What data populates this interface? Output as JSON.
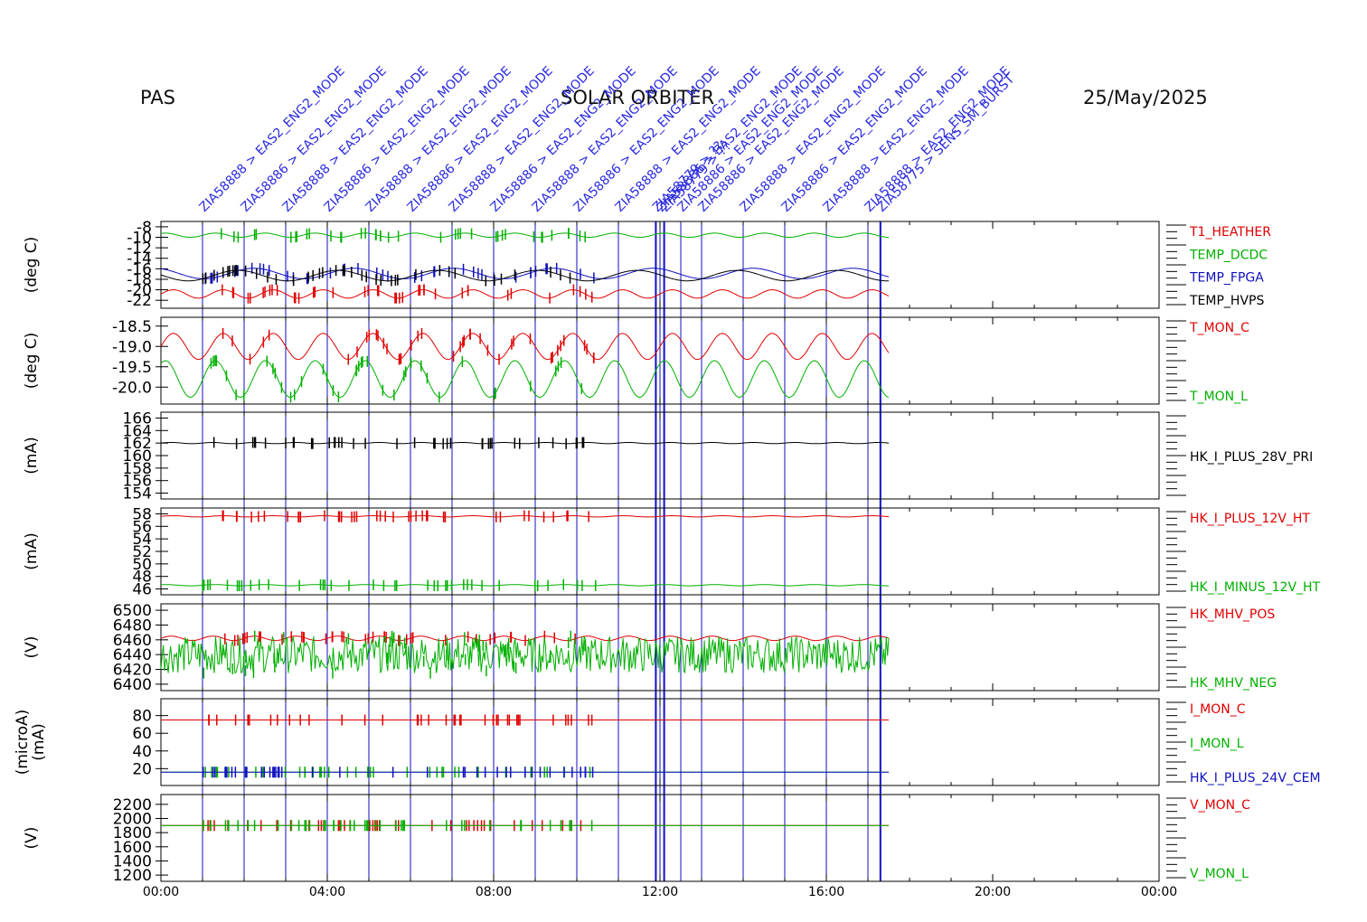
{
  "header": {
    "left": "PAS",
    "center": "SOLAR ORBITER",
    "date": "25/May/2025"
  },
  "colors": {
    "red": "#e00000",
    "green": "#00b000",
    "blue": "#1010c0",
    "black": "#000000",
    "event_text": "#2a2ae0"
  },
  "chart_data": [
    {
      "type": "line",
      "ylabel": "(deg C)",
      "yticks": [
        "-8",
        "-10",
        "-12",
        "-14",
        "-16",
        "-18",
        "-20",
        "-22"
      ],
      "ylim": [
        -23,
        -7.5
      ],
      "series": [
        {
          "name": "T1_HEATHER",
          "color": "red",
          "base": -20.8,
          "amp": 0.8,
          "period_h": 1.2
        },
        {
          "name": "TEMP_DCDC",
          "color": "green",
          "base": -9.6,
          "amp": 0.4,
          "period_h": 1.2
        },
        {
          "name": "TEMP_FPGA",
          "color": "blue",
          "base": -16.9,
          "amp": 1.0,
          "period_h": 2.4
        },
        {
          "name": "TEMP_HVPS",
          "color": "black",
          "base": -17.3,
          "amp": 1.0,
          "period_h": 2.4
        }
      ]
    },
    {
      "type": "line",
      "ylabel": "(deg C)",
      "yticks": [
        "-18.5",
        "-19.0",
        "-19.5",
        "-20.0"
      ],
      "ylim": [
        -20.35,
        -18.35
      ],
      "series": [
        {
          "name": "T_MON_C",
          "color": "red",
          "base": -19.0,
          "amp": 0.32,
          "period_h": 1.2
        },
        {
          "name": "T_MON_L",
          "color": "green",
          "base": -19.8,
          "amp": 0.45,
          "period_h": 1.2
        }
      ]
    },
    {
      "type": "line",
      "ylabel": "(mA)",
      "yticks": [
        "166",
        "164",
        "162",
        "160",
        "158",
        "156",
        "154"
      ],
      "ylim": [
        153.5,
        166.5
      ],
      "series": [
        {
          "name": "HK_I_PLUS_28V_PRI",
          "color": "black",
          "base": 162.0,
          "amp": 0.1,
          "period_h": 1.0
        }
      ]
    },
    {
      "type": "line",
      "ylabel": "(mA)",
      "yticks": [
        "58",
        "56",
        "54",
        "52",
        "50",
        "48",
        "46"
      ],
      "ylim": [
        45.5,
        58.5
      ],
      "series": [
        {
          "name": "HK_I_PLUS_12V_HT",
          "color": "red",
          "base": 57.6,
          "amp": 0.1,
          "period_h": 1.2
        },
        {
          "name": "HK_I_MINUS_12V_HT",
          "color": "green",
          "base": 46.6,
          "amp": 0.1,
          "period_h": 1.2
        }
      ]
    },
    {
      "type": "line",
      "ylabel": "(V)",
      "yticks": [
        "6500",
        "6480",
        "6460",
        "6440",
        "6420",
        "6400"
      ],
      "ylim": [
        6395,
        6505
      ],
      "series": [
        {
          "name": "HK_MHV_POS",
          "color": "red",
          "base": 6462,
          "amp": 3,
          "period_h": 1.0
        },
        {
          "name": "HK_MHV_NEG",
          "color": "green",
          "base": 6440,
          "amp": 25,
          "period_h": 0.05
        }
      ]
    },
    {
      "type": "line",
      "ylabel": "(microA)",
      "ylabel2": "(mA)",
      "yticks": [
        "80",
        "60",
        "40",
        "20"
      ],
      "ylim": [
        4,
        96
      ],
      "series": [
        {
          "name": "I_MON_C",
          "color": "red",
          "base": 75,
          "amp": 0,
          "period_h": 1.0
        },
        {
          "name": "I_MON_L",
          "color": "green",
          "base": 16,
          "amp": 0,
          "period_h": 1.0
        },
        {
          "name": "HK_I_PLUS_24V_CEM",
          "color": "blue",
          "base": 16,
          "amp": 0,
          "period_h": 1.0
        }
      ]
    },
    {
      "type": "line",
      "ylabel": "(V)",
      "yticks": [
        "2200",
        "2000",
        "1800",
        "1600",
        "1400",
        "1200"
      ],
      "ylim": [
        1150,
        2300
      ],
      "series": [
        {
          "name": "V_MON_C",
          "color": "red",
          "base": 1900,
          "amp": 0,
          "period_h": 1.0
        },
        {
          "name": "V_MON_L",
          "color": "green",
          "base": 1900,
          "amp": 0,
          "period_h": 1.0
        }
      ]
    }
  ],
  "x_axis": {
    "ticks": [
      "00:00",
      "04:00",
      "08:00",
      "12:00",
      "16:00",
      "20:00",
      "00:00"
    ],
    "range_hours": [
      0,
      24
    ],
    "data_end_hours": 17.5
  },
  "events": [
    {
      "t": 1.0,
      "label": "ZIA58888 > EAS2_ENG2_MODE"
    },
    {
      "t": 2.0,
      "label": "ZIA58886 > EAS2_ENG2_MODE"
    },
    {
      "t": 3.0,
      "label": "ZIA58888 > EAS2_ENG2_MODE"
    },
    {
      "t": 4.0,
      "label": "ZIA58886 > EAS2_ENG2_MODE"
    },
    {
      "t": 5.0,
      "label": "ZIA58888 > EAS2_ENG2_MODE"
    },
    {
      "t": 6.0,
      "label": "ZIA58886 > EAS2_ENG2_MODE"
    },
    {
      "t": 7.0,
      "label": "ZIA58888 > EAS2_ENG2_MODE"
    },
    {
      "t": 8.0,
      "label": "ZIA58886 > EAS2_ENG2_MODE"
    },
    {
      "t": 9.0,
      "label": "ZIA58888 > EAS2_ENG2_MODE"
    },
    {
      "t": 10.0,
      "label": "ZIA58886 > EAS2_ENG2_MODE"
    },
    {
      "t": 11.0,
      "label": "ZIA58888 > EAS2_ENG2_MODE"
    },
    {
      "t": 12.0,
      "label": "ZIA58886 > EAS2_ENG2_MODE"
    },
    {
      "t": 12.5,
      "label": "ZIA58886 > EAS2_ENG2_MODE"
    },
    {
      "t": 13.0,
      "label": "ZIA58886 > EAS2_ENG2_MODE"
    },
    {
      "t": 14.0,
      "label": "ZIA58888 > EAS2_ENG2_MODE"
    },
    {
      "t": 15.0,
      "label": "ZIA58886 > EAS2_ENG2_MODE"
    },
    {
      "t": 16.0,
      "label": "ZIA58888 > EAS2_ENG2_MODE"
    },
    {
      "t": 17.0,
      "label": "ZIA58888 > EAS2_ENG2_MODE"
    }
  ],
  "event_clusters": [
    {
      "t": 11.9,
      "label": "ZIA58779 > ??"
    },
    {
      "t": 12.1,
      "label": "ZIA58779 > ??"
    },
    {
      "t": 17.3,
      "label": "ZIA58775 > SENS_SM_BURST"
    }
  ]
}
